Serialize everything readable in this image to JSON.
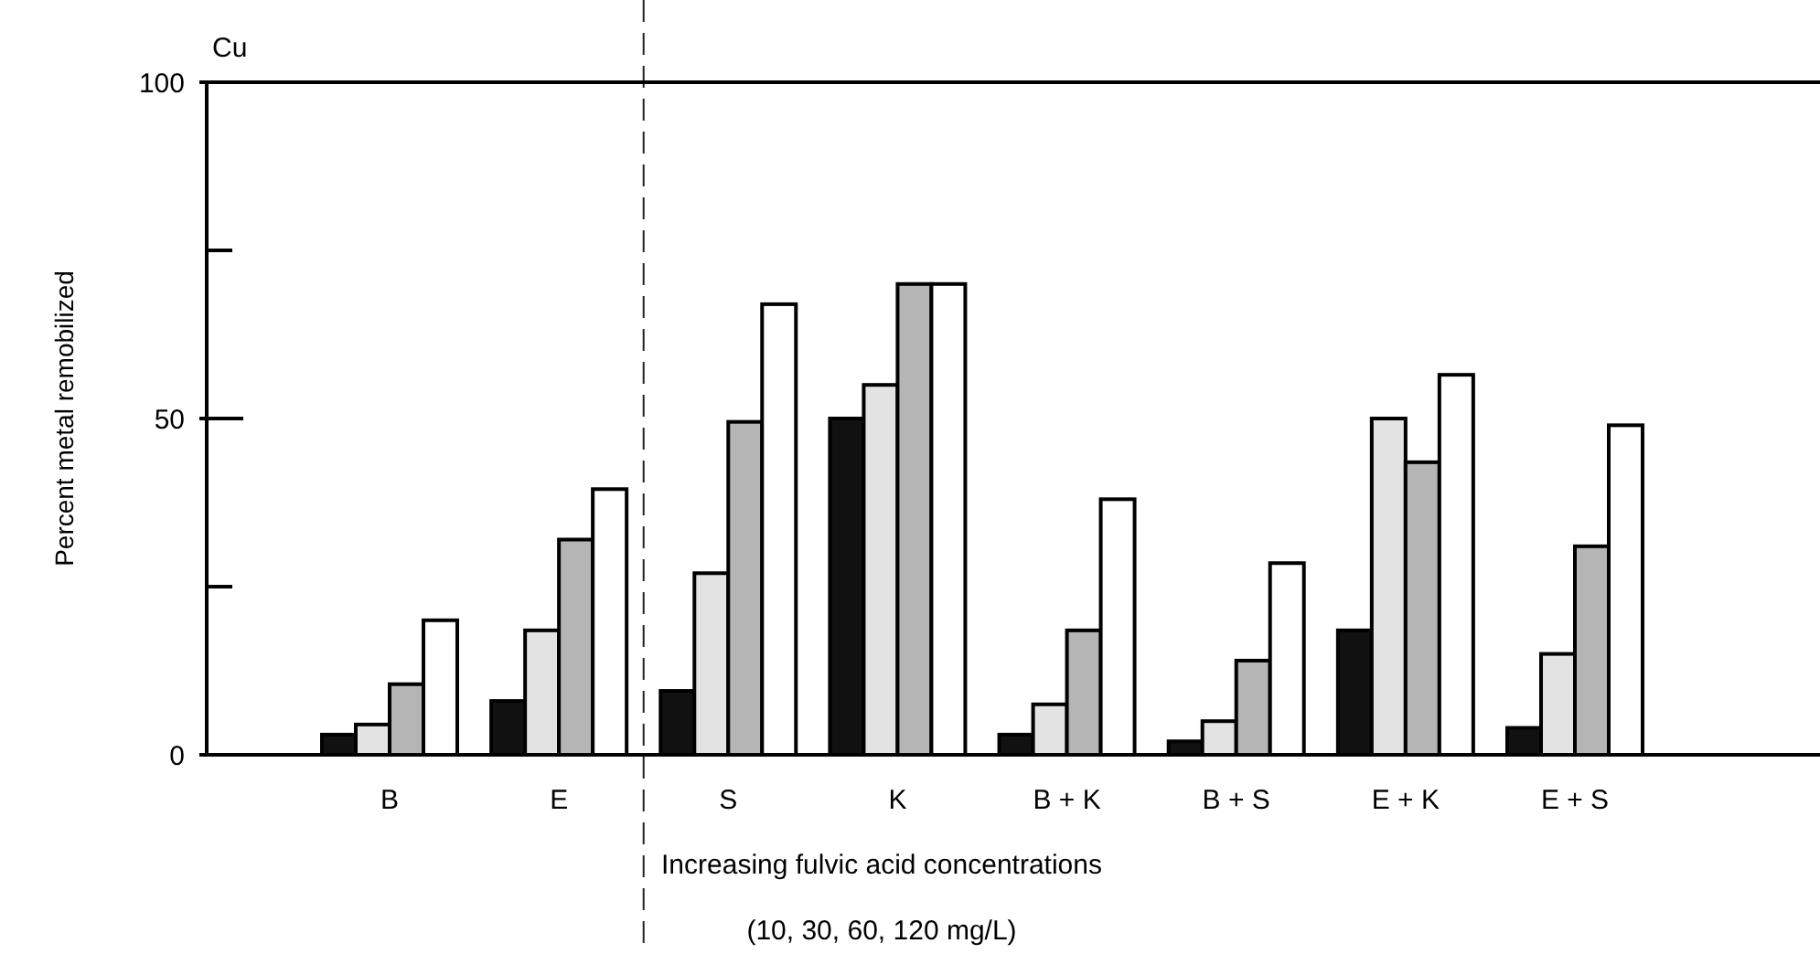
{
  "chart_data": {
    "type": "bar",
    "title": "Cu",
    "xlabel": "Increasing fulvic acid concentrations\n(10, 30, 60, 120 mg/L)",
    "ylabel": "Percent metal remobilized",
    "categories": [
      "B",
      "E",
      "S",
      "K",
      "B + K",
      "B + S",
      "E + K",
      "E + S"
    ],
    "series": [
      {
        "color": "#111111",
        "values": [
          3,
          8,
          9.5,
          50,
          3,
          2,
          18.5,
          4
        ]
      },
      {
        "color": "#e3e3e3",
        "values": [
          4.5,
          18.5,
          27,
          55,
          7.5,
          5,
          50,
          15
        ]
      },
      {
        "color": "#b5b5b5",
        "values": [
          10.5,
          32,
          49.5,
          70,
          18.5,
          14,
          43.5,
          31
        ]
      },
      {
        "color": "#ffffff",
        "values": [
          20,
          39.5,
          67,
          70,
          38,
          28.5,
          56.5,
          49
        ]
      }
    ],
    "ylim": [
      0,
      100
    ],
    "yticks": [
      0,
      50,
      100
    ],
    "grid": false
  }
}
